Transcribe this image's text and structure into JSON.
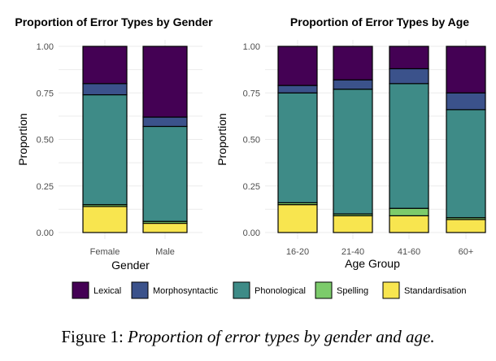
{
  "chart_data": [
    {
      "type": "bar",
      "stacked": true,
      "title": "Proportion of Error Types by Gender",
      "xlabel": "Gender",
      "ylabel": "Proportion",
      "ylim": [
        0,
        1
      ],
      "yticks": [
        "0.00",
        "0.25",
        "0.50",
        "0.75",
        "1.00"
      ],
      "categories": [
        "Female",
        "Male"
      ],
      "series": [
        {
          "name": "Standardisation",
          "values": [
            0.14,
            0.05
          ]
        },
        {
          "name": "Spelling",
          "values": [
            0.01,
            0.01
          ]
        },
        {
          "name": "Phonological",
          "values": [
            0.59,
            0.51
          ]
        },
        {
          "name": "Morphosyntactic",
          "values": [
            0.06,
            0.05
          ]
        },
        {
          "name": "Lexical",
          "values": [
            0.2,
            0.38
          ]
        }
      ]
    },
    {
      "type": "bar",
      "stacked": true,
      "title": "Proportion of Error Types by Age",
      "xlabel": "Age Group",
      "ylabel": "Proportion",
      "ylim": [
        0,
        1
      ],
      "yticks": [
        "0.00",
        "0.25",
        "0.50",
        "0.75",
        "1.00"
      ],
      "categories": [
        "16-20",
        "21-40",
        "41-60",
        "60+"
      ],
      "series": [
        {
          "name": "Standardisation",
          "values": [
            0.15,
            0.09,
            0.09,
            0.07
          ]
        },
        {
          "name": "Spelling",
          "values": [
            0.01,
            0.01,
            0.04,
            0.01
          ]
        },
        {
          "name": "Phonological",
          "values": [
            0.59,
            0.67,
            0.67,
            0.58
          ]
        },
        {
          "name": "Morphosyntactic",
          "values": [
            0.04,
            0.05,
            0.08,
            0.09
          ]
        },
        {
          "name": "Lexical",
          "values": [
            0.21,
            0.18,
            0.12,
            0.25
          ]
        }
      ]
    }
  ],
  "legend": {
    "items": [
      {
        "name": "Lexical",
        "color": "#440154"
      },
      {
        "name": "Morphosyntactic",
        "color": "#3b528b"
      },
      {
        "name": "Phonological",
        "color": "#3e8b87"
      },
      {
        "name": "Spelling",
        "color": "#7ccb6b"
      },
      {
        "name": "Standardisation",
        "color": "#f8e54f"
      }
    ],
    "position": "bottom"
  },
  "caption": {
    "label": "Figure 1:",
    "text": "Proportion of error types by gender and age."
  }
}
